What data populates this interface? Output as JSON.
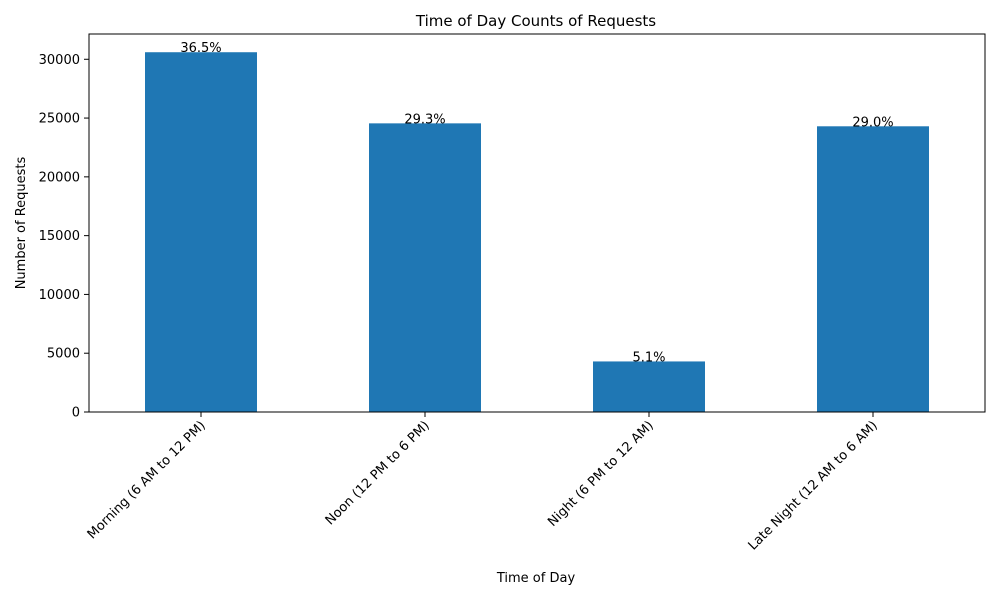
{
  "chart_data": {
    "type": "bar",
    "title": "Time of Day Counts of Requests",
    "xlabel": "Time of Day",
    "ylabel": "Number of Requests",
    "categories": [
      "Morning (6 AM to 12 PM)",
      "Noon (12 PM to 6 PM)",
      "Night (6 PM to 12 AM)",
      "Late Night (12 AM to 6 AM)"
    ],
    "values": [
      30600,
      24550,
      4300,
      24300
    ],
    "bar_labels": [
      "36.5%",
      "29.3%",
      "5.1%",
      "29.0%"
    ],
    "yticks": [
      0,
      5000,
      10000,
      15000,
      20000,
      25000,
      30000
    ],
    "ylim": [
      0,
      32150
    ],
    "xtick_rotation": 45,
    "grid": false,
    "bar_color": "#1f77b4"
  }
}
